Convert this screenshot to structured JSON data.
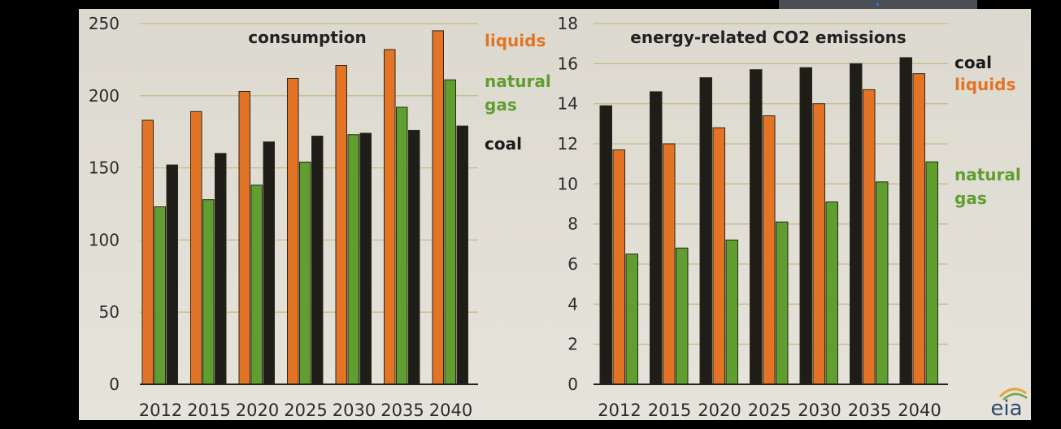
{
  "chart_data": [
    {
      "type": "bar",
      "title": "consumption",
      "categories": [
        "2012",
        "2015",
        "2020",
        "2025",
        "2030",
        "2035",
        "2040"
      ],
      "ylim": [
        0,
        250
      ],
      "yticks": [
        "0",
        "50",
        "100",
        "150",
        "200",
        "250"
      ],
      "series": [
        {
          "name": "liquids",
          "color": "#e37425",
          "values": [
            183,
            189,
            203,
            212,
            221,
            232,
            245
          ]
        },
        {
          "name": "natural gas",
          "color": "#5f9e2f",
          "values": [
            123,
            128,
            138,
            154,
            173,
            192,
            211
          ]
        },
        {
          "name": "coal",
          "color": "#1f1d18",
          "values": [
            152,
            160,
            168,
            172,
            174,
            176,
            179
          ]
        }
      ],
      "legend_labels": [
        [
          "liquids"
        ],
        [
          "natural",
          "gas"
        ],
        [
          "coal"
        ]
      ]
    },
    {
      "type": "bar",
      "title": "energy-related CO2 emissions",
      "categories": [
        "2012",
        "2015",
        "2020",
        "2025",
        "2030",
        "2035",
        "2040"
      ],
      "ylim": [
        0,
        18
      ],
      "yticks": [
        "0",
        "2",
        "4",
        "6",
        "8",
        "10",
        "12",
        "14",
        "16",
        "18"
      ],
      "series": [
        {
          "name": "coal",
          "color": "#1f1d18",
          "values": [
            13.9,
            14.6,
            15.3,
            15.7,
            15.8,
            16.0,
            16.3
          ]
        },
        {
          "name": "liquids",
          "color": "#e37425",
          "values": [
            11.7,
            12.0,
            12.8,
            13.4,
            14.0,
            14.7,
            15.5
          ]
        },
        {
          "name": "natural gas",
          "color": "#5f9e2f",
          "values": [
            6.5,
            6.8,
            7.2,
            8.1,
            9.1,
            10.1,
            11.1
          ]
        }
      ],
      "legend_labels": [
        [
          "coal"
        ],
        [
          "liquids"
        ],
        [
          "natural",
          "gas"
        ]
      ]
    }
  ],
  "logo": {
    "text": "eia"
  }
}
